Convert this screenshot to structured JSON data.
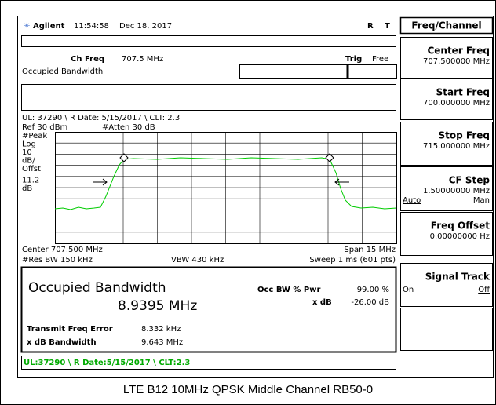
{
  "header": {
    "brand": "Agilent",
    "time": "11:54:58",
    "date": "Dec 18, 2017",
    "r": "R",
    "t": "T"
  },
  "measure": {
    "ch_freq_label": "Ch Freq",
    "ch_freq": "707.5 MHz",
    "trig_label": "Trig",
    "trig": "Free",
    "mode": "Occupied Bandwidth"
  },
  "info": "UL: 37290 \\ R Date: 5/15/2017 \\ CLT: 2.3",
  "ref": "Ref 30 dBm",
  "atten": "#Atten 30 dB",
  "scale_labels": [
    "#Peak",
    "Log",
    "10",
    "dB/",
    "Offst",
    "11.2",
    "dB"
  ],
  "center": "Center 707.500 MHz",
  "span": "Span 15 MHz",
  "rbw": "#Res BW 150 kHz",
  "vbw": "VBW 430 kHz",
  "sweep": "Sweep 1 ms (601 pts)",
  "result": {
    "title": "Occupied Bandwidth",
    "value": "8.9395 MHz",
    "pwr_label": "Occ BW % Pwr",
    "pwr": "99.00 %",
    "xdb_label": "x dB",
    "xdb": "-26.00 dB",
    "tfe_label": "Transmit Freq Error",
    "tfe": "8.332 kHz",
    "xbw_label": "x dB Bandwidth",
    "xbw": "9.643 MHz"
  },
  "status_line": "UL:37290 \\ R Date:5/15/2017 \\ CLT:2.3",
  "menu": {
    "title": "Freq/Channel",
    "keys": [
      {
        "label": "Center Freq",
        "value": "707.500000 MHz"
      },
      {
        "label": "Start Freq",
        "value": "700.000000 MHz"
      },
      {
        "label": "Stop Freq",
        "value": "715.000000 MHz"
      },
      {
        "label": "CF Step",
        "value": "1.50000000 MHz",
        "options": [
          "Auto",
          "Man"
        ]
      },
      {
        "label": "Freq Offset",
        "value": "0.00000000 Hz"
      },
      {
        "label": "Signal Track",
        "options": [
          "On",
          "Off"
        ]
      }
    ]
  },
  "caption": "LTE B12 10MHz QPSK Middle Channel RB50-0"
}
